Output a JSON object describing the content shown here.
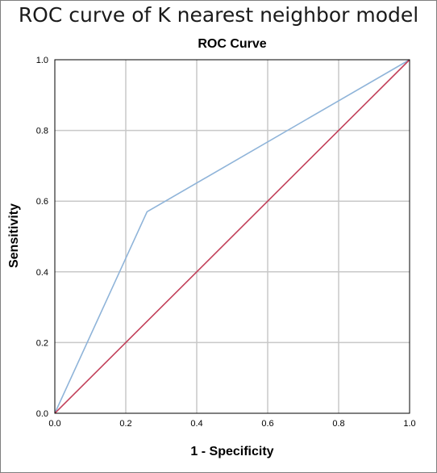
{
  "figure_title": "ROC curve of K nearest neighbor model",
  "chart_data": {
    "type": "line",
    "title": "ROC Curve",
    "xlabel": "1 - Specificity",
    "ylabel": "Sensitivity",
    "xlim": [
      0,
      1
    ],
    "ylim": [
      0,
      1
    ],
    "x_ticks": [
      "0.0",
      "0.2",
      "0.4",
      "0.6",
      "0.8",
      "1.0"
    ],
    "y_ticks": [
      "0.0",
      "0.2",
      "0.4",
      "0.6",
      "0.8",
      "1.0"
    ],
    "grid": true,
    "legend": "none",
    "series": [
      {
        "color": "#8fb4d9",
        "x": [
          0,
          0.26,
          1
        ],
        "y": [
          0,
          0.57,
          1
        ]
      },
      {
        "color": "#c2405a",
        "x": [
          0,
          1
        ],
        "y": [
          0,
          1
        ]
      }
    ]
  }
}
